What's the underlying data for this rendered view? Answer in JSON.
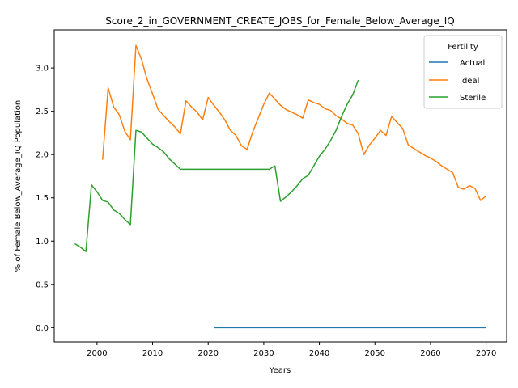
{
  "chart_data": {
    "type": "line",
    "title": "Score_2_in_GOVERNMENT_CREATE_JOBS_for_Female_Below_Average_IQ",
    "xlabel": "Years",
    "ylabel": "% of Female Below_Average_IQ Population",
    "xlim": [
      1992.3,
      2073.7
    ],
    "ylim": [
      -0.165,
      3.44
    ],
    "xticks": [
      2000,
      2010,
      2020,
      2030,
      2040,
      2050,
      2060,
      2070
    ],
    "yticks": [
      0.0,
      0.5,
      1.0,
      1.5,
      2.0,
      2.5,
      3.0
    ],
    "xtick_labels": [
      "2000",
      "2010",
      "2020",
      "2030",
      "2040",
      "2050",
      "2060",
      "2070"
    ],
    "ytick_labels": [
      "0.0",
      "0.5",
      "1.0",
      "1.5",
      "2.0",
      "2.5",
      "3.0"
    ],
    "legend": {
      "title": "Fertility",
      "position": "top-right"
    },
    "grid": false,
    "series": [
      {
        "name": "Actual",
        "color": "#1f77b4",
        "x": [
          2021,
          2030,
          2040,
          2050,
          2060,
          2070
        ],
        "y": [
          0,
          0,
          0,
          0,
          0,
          0
        ]
      },
      {
        "name": "Ideal",
        "color": "#ff7f0e",
        "x": [
          2001,
          2002,
          2003,
          2004,
          2005,
          2006,
          2007,
          2008,
          2009,
          2010,
          2011,
          2012,
          2013,
          2014,
          2015,
          2016,
          2017,
          2018,
          2019,
          2020,
          2021,
          2022,
          2023,
          2024,
          2025,
          2026,
          2027,
          2028,
          2029,
          2030,
          2031,
          2032,
          2033,
          2034,
          2035,
          2036,
          2037,
          2038,
          2039,
          2040,
          2041,
          2042,
          2043,
          2044,
          2045,
          2046,
          2047,
          2048,
          2049,
          2050,
          2051,
          2052,
          2053,
          2054,
          2055,
          2056,
          2057,
          2058,
          2059,
          2060,
          2061,
          2062,
          2063,
          2064,
          2065,
          2066,
          2067,
          2068,
          2069,
          2070
        ],
        "y": [
          1.94,
          2.77,
          2.55,
          2.46,
          2.27,
          2.17,
          3.26,
          3.1,
          2.87,
          2.7,
          2.52,
          2.45,
          2.38,
          2.32,
          2.24,
          2.62,
          2.55,
          2.49,
          2.4,
          2.66,
          2.57,
          2.49,
          2.4,
          2.28,
          2.22,
          2.1,
          2.06,
          2.26,
          2.42,
          2.58,
          2.71,
          2.64,
          2.57,
          2.52,
          2.49,
          2.46,
          2.42,
          2.63,
          2.6,
          2.58,
          2.53,
          2.51,
          2.45,
          2.41,
          2.36,
          2.34,
          2.24,
          2.0,
          2.11,
          2.19,
          2.28,
          2.22,
          2.44,
          2.37,
          2.3,
          2.11,
          2.07,
          2.03,
          1.99,
          1.96,
          1.92,
          1.87,
          1.83,
          1.79,
          1.62,
          1.6,
          1.64,
          1.61,
          1.47,
          1.52
        ]
      },
      {
        "name": "Sterile",
        "color": "#2ca02c",
        "x": [
          1996,
          1997,
          1998,
          1999,
          2000,
          2001,
          2002,
          2003,
          2004,
          2005,
          2006,
          2007,
          2008,
          2009,
          2010,
          2011,
          2012,
          2013,
          2014,
          2015,
          2016,
          2017,
          2018,
          2019,
          2020,
          2021,
          2022,
          2023,
          2024,
          2025,
          2026,
          2027,
          2028,
          2029,
          2030,
          2031,
          2032,
          2033,
          2034,
          2035,
          2036,
          2037,
          2038,
          2039,
          2040,
          2041,
          2042,
          2043,
          2044,
          2045,
          2046,
          2047
        ],
        "y": [
          0.97,
          0.93,
          0.88,
          1.65,
          1.57,
          1.47,
          1.45,
          1.36,
          1.32,
          1.25,
          1.19,
          2.28,
          2.26,
          2.19,
          2.12,
          2.08,
          2.03,
          1.95,
          1.89,
          1.83,
          1.83,
          1.83,
          1.83,
          1.83,
          1.83,
          1.83,
          1.83,
          1.83,
          1.83,
          1.83,
          1.83,
          1.83,
          1.83,
          1.83,
          1.83,
          1.83,
          1.87,
          1.46,
          1.51,
          1.57,
          1.64,
          1.72,
          1.76,
          1.87,
          1.98,
          2.06,
          2.16,
          2.28,
          2.44,
          2.58,
          2.69,
          2.86
        ]
      }
    ]
  }
}
